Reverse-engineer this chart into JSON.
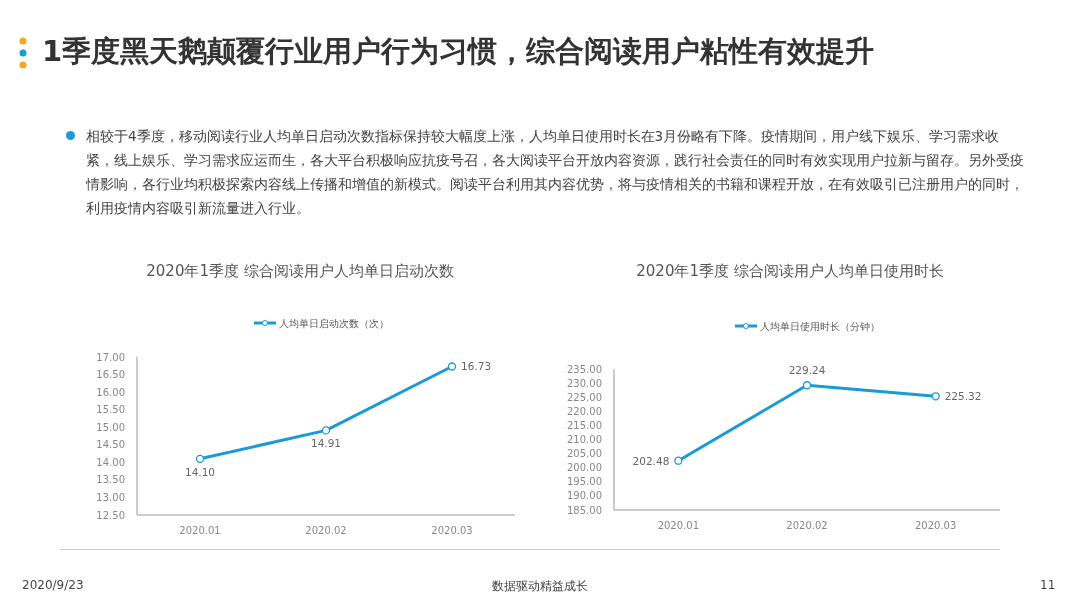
{
  "chart_data": [
    {
      "type": "other",
      "title": "1季度黑天鹅颠覆行业用户行为习惯，综合阅读用户粘性有效提升",
      "annotations": [
        "相较于4季度，移动阅读行业人均单日启动次数指标保持较大幅度上涨，人均单日使用时长在3月份略有下降。疫情期间，用户线下娱乐、学习需求收紧，线上娱乐、学习需求应运而生，各大平台积极响应抗疫号召，各大阅读平台开放内容资源，践行社会责任的同时有效实现用户拉新与留存。另外受疫情影响，各行业均积极探索内容线上传播和增值的新模式。阅读平台利用其内容优势，将与疫情相关的书籍和课程开放，在有效吸引已注册用户的同时，利用疫情内容吸引新流量进入行业。",
        "2020/9/23",
        "数据驱动精益成长",
        "11"
      ]
    },
    {
      "type": "line",
      "title": "2020年1季度 综合阅读用户人均单日启动次数",
      "categories": [
        "2020.01",
        "2020.02",
        "2020.03"
      ],
      "series": [
        {
          "name": "人均单日启动次数（次）",
          "color": "#1a9ad6",
          "values": [
            14.1,
            14.91,
            16.73
          ],
          "value_labels": [
            "14.10",
            "14.91",
            "16.73"
          ]
        }
      ],
      "ylim": [
        12.5,
        17
      ],
      "yticks": [
        {
          "value": 12.5,
          "label": "12.50"
        },
        {
          "value": 13,
          "label": "13.00"
        },
        {
          "value": 13.5,
          "label": "13.50"
        },
        {
          "value": 14,
          "label": "14.00"
        },
        {
          "value": 14.5,
          "label": "14.50"
        },
        {
          "value": 15,
          "label": "15.00"
        },
        {
          "value": 15.5,
          "label": "15.50"
        },
        {
          "value": 16,
          "label": "16.00"
        },
        {
          "value": 16.5,
          "label": "16.50"
        },
        {
          "value": 17,
          "label": "17.00"
        }
      ],
      "legend": "top",
      "marker": "circle",
      "grid": false
    },
    {
      "type": "line",
      "title": "2020年1季度 综合阅读用户人均单日使用时长",
      "categories": [
        "2020.01",
        "2020.02",
        "2020.03"
      ],
      "series": [
        {
          "name": "人均单日使用时长（分钟）",
          "color": "#1a9ad6",
          "values": [
            202.48,
            229.24,
            225.32
          ],
          "value_labels": [
            "202.48",
            "229.24",
            "225.32"
          ]
        }
      ],
      "ylim": [
        185,
        235
      ],
      "yticks": [
        {
          "value": 185,
          "label": "185.00"
        },
        {
          "value": 190,
          "label": "190.00"
        },
        {
          "value": 195,
          "label": "195.00"
        },
        {
          "value": 200,
          "label": "200.00"
        },
        {
          "value": 205,
          "label": "205.00"
        },
        {
          "value": 210,
          "label": "210.00"
        },
        {
          "value": 215,
          "label": "215.00"
        },
        {
          "value": 220,
          "label": "220.00"
        },
        {
          "value": 225,
          "label": "225.00"
        },
        {
          "value": 230,
          "label": "230.00"
        },
        {
          "value": 235,
          "label": "235.00"
        }
      ],
      "legend": "top",
      "marker": "circle",
      "grid": false
    }
  ]
}
